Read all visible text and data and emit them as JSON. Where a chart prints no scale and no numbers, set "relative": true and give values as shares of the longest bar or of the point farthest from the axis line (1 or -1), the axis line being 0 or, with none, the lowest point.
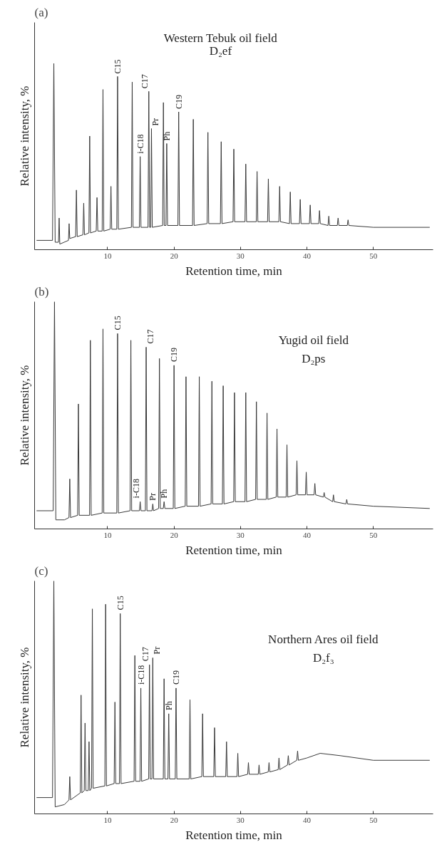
{
  "chart_data": [
    {
      "type": "line",
      "relative": true,
      "title": "Western Tebuk oil field",
      "subtitle": "D₂ef",
      "xlabel": "Retention time, min",
      "ylabel": "Relative intensity, %",
      "xlim": [
        -1,
        59
      ],
      "xticks": [
        10,
        20,
        30,
        40,
        50
      ],
      "grid": false,
      "series": [
        {
          "color": "#3a3a3a",
          "x": [
            -0.7,
            1.7,
            1.9,
            2.1,
            2.6,
            2.7,
            2.8,
            4.1,
            4.2,
            4.3,
            5.18,
            5.3,
            5.42,
            6.28,
            6.4,
            6.52,
            7.18,
            7.3,
            7.42,
            8.28,
            8.4,
            8.52,
            9.18,
            9.3,
            9.42,
            10.38,
            10.5,
            10.62,
            11.38,
            11.5,
            11.62,
            13.58,
            13.7,
            13.82,
            14.78,
            14.9,
            15.02,
            16.08,
            16.2,
            16.32,
            16.48,
            16.6,
            16.72,
            18.28,
            18.4,
            18.52,
            18.78,
            18.9,
            19.02,
            20.58,
            20.7,
            20.82,
            22.78,
            22.9,
            23.02,
            24.98,
            25.1,
            25.22,
            26.98,
            27.1,
            27.22,
            28.88,
            29.0,
            29.12,
            30.68,
            30.8,
            30.92,
            32.38,
            32.5,
            32.62,
            34.08,
            34.2,
            34.32,
            35.78,
            35.9,
            36.02,
            37.38,
            37.5,
            37.62,
            38.88,
            39.0,
            39.12,
            40.38,
            40.5,
            40.62,
            41.78,
            41.9,
            42.02,
            43.18,
            43.3,
            43.42,
            44.58,
            44.7,
            44.82,
            46.08,
            46.2,
            46.32,
            50,
            58.5
          ],
          "values": [
            0.05,
            0.05,
            1.0,
            0.04,
            0.04,
            0.17,
            0.03,
            0.05,
            0.14,
            0.06,
            0.07,
            0.32,
            0.07,
            0.08,
            0.25,
            0.08,
            0.09,
            0.61,
            0.09,
            0.1,
            0.28,
            0.1,
            0.1,
            0.86,
            0.1,
            0.11,
            0.34,
            0.11,
            0.11,
            0.93,
            0.11,
            0.12,
            0.9,
            0.12,
            0.12,
            0.5,
            0.12,
            0.12,
            0.85,
            0.12,
            0.12,
            0.65,
            0.12,
            0.13,
            0.79,
            0.13,
            0.13,
            0.57,
            0.13,
            0.13,
            0.74,
            0.13,
            0.13,
            0.7,
            0.13,
            0.14,
            0.63,
            0.14,
            0.14,
            0.58,
            0.14,
            0.15,
            0.54,
            0.15,
            0.15,
            0.46,
            0.15,
            0.15,
            0.42,
            0.15,
            0.15,
            0.38,
            0.15,
            0.15,
            0.34,
            0.15,
            0.14,
            0.31,
            0.14,
            0.14,
            0.27,
            0.14,
            0.14,
            0.24,
            0.14,
            0.14,
            0.21,
            0.14,
            0.13,
            0.18,
            0.13,
            0.13,
            0.17,
            0.13,
            0.13,
            0.16,
            0.13,
            0.12,
            0.12
          ]
        }
      ],
      "annotations": [
        "(a)",
        {
          "text": "C15",
          "x": 11.5,
          "y": 0.93
        },
        {
          "text": "i-C18",
          "x": 14.9,
          "y": 0.5
        },
        {
          "text": "C17",
          "x": 16.2,
          "y": 0.85
        },
        {
          "text": "Pr",
          "x": 16.6,
          "y": 0.65
        },
        {
          "text": "Ph",
          "x": 18.9,
          "y": 0.57
        },
        {
          "text": "C19",
          "x": 20.7,
          "y": 0.74
        }
      ]
    },
    {
      "type": "line",
      "relative": true,
      "title": "Yugid oil field",
      "subtitle": "D₂ps",
      "xlabel": "Retention time, min",
      "ylabel": "Relative intensity, %",
      "xlim": [
        -1,
        59
      ],
      "xticks": [
        10,
        20,
        30,
        40,
        50
      ],
      "grid": false,
      "series": [
        {
          "color": "#3a3a3a",
          "x": [
            -0.7,
            1.8,
            2.0,
            2.2,
            3.5,
            4.18,
            4.3,
            4.42,
            5.48,
            5.6,
            5.72,
            7.28,
            7.4,
            7.52,
            9.18,
            9.3,
            9.42,
            11.38,
            11.5,
            11.62,
            13.38,
            13.5,
            13.62,
            14.78,
            14.9,
            15.02,
            15.68,
            15.8,
            15.92,
            16.68,
            16.8,
            16.92,
            17.68,
            17.8,
            17.92,
            18.38,
            18.5,
            18.62,
            19.88,
            20.0,
            20.12,
            21.68,
            21.8,
            21.92,
            23.68,
            23.8,
            23.92,
            25.58,
            25.7,
            25.82,
            27.28,
            27.4,
            27.52,
            28.98,
            29.1,
            29.22,
            30.68,
            30.8,
            30.92,
            32.28,
            32.4,
            32.52,
            33.88,
            34.0,
            34.12,
            35.38,
            35.5,
            35.62,
            36.88,
            37.0,
            37.12,
            38.38,
            38.5,
            38.62,
            39.78,
            39.9,
            40.02,
            41.08,
            41.2,
            41.32,
            42.48,
            42.6,
            42.72,
            43.88,
            44.0,
            44.12,
            45.88,
            46.0,
            46.12,
            50,
            58.5
          ],
          "values": [
            0.08,
            0.08,
            1.0,
            0.04,
            0.04,
            0.05,
            0.22,
            0.05,
            0.06,
            0.55,
            0.06,
            0.06,
            0.83,
            0.06,
            0.07,
            0.88,
            0.07,
            0.07,
            0.86,
            0.07,
            0.08,
            0.83,
            0.08,
            0.08,
            0.12,
            0.08,
            0.08,
            0.8,
            0.08,
            0.08,
            0.11,
            0.08,
            0.09,
            0.75,
            0.09,
            0.09,
            0.12,
            0.09,
            0.09,
            0.72,
            0.09,
            0.1,
            0.67,
            0.1,
            0.1,
            0.67,
            0.1,
            0.11,
            0.65,
            0.11,
            0.11,
            0.63,
            0.11,
            0.12,
            0.6,
            0.12,
            0.12,
            0.6,
            0.12,
            0.13,
            0.56,
            0.13,
            0.13,
            0.51,
            0.13,
            0.14,
            0.44,
            0.14,
            0.14,
            0.37,
            0.14,
            0.15,
            0.3,
            0.15,
            0.15,
            0.25,
            0.15,
            0.15,
            0.2,
            0.15,
            0.14,
            0.16,
            0.14,
            0.12,
            0.15,
            0.12,
            0.11,
            0.13,
            0.11,
            0.1,
            0.09
          ]
        }
      ],
      "annotations": [
        "(b)",
        {
          "text": "C15",
          "x": 11.5,
          "y": 0.86
        },
        {
          "text": "i-C18",
          "x": 14.9,
          "y": 0.12
        },
        {
          "text": "C17",
          "x": 15.8,
          "y": 0.8
        },
        {
          "text": "Pr",
          "x": 16.8,
          "y": 0.11
        },
        {
          "text": "Ph",
          "x": 18.5,
          "y": 0.12
        },
        {
          "text": "C19",
          "x": 20.0,
          "y": 0.72
        }
      ]
    },
    {
      "type": "line",
      "relative": true,
      "title": "Northern Ares oil field",
      "subtitle": "D₂f₃",
      "xlabel": "Retention time, min",
      "ylabel": "Relative intensity, %",
      "xlim": [
        -1,
        59
      ],
      "xticks": [
        10,
        20,
        30,
        40,
        50
      ],
      "grid": false,
      "series": [
        {
          "color": "#3a3a3a",
          "x": [
            -0.7,
            1.7,
            1.9,
            2.1,
            3.5,
            4.18,
            4.3,
            4.42,
            5.88,
            6.0,
            6.12,
            6.48,
            6.6,
            6.72,
            7.08,
            7.2,
            7.32,
            7.58,
            7.7,
            7.82,
            9.58,
            9.7,
            9.82,
            10.98,
            11.1,
            11.22,
            11.78,
            11.9,
            12.02,
            13.98,
            14.1,
            14.22,
            14.88,
            15.0,
            15.12,
            16.18,
            16.3,
            16.42,
            16.68,
            16.8,
            16.92,
            18.38,
            18.5,
            18.62,
            19.08,
            19.2,
            19.32,
            20.18,
            20.3,
            20.42,
            22.28,
            22.4,
            22.52,
            24.18,
            24.3,
            24.42,
            25.98,
            26.1,
            26.22,
            27.78,
            27.9,
            28.02,
            29.48,
            29.6,
            29.72,
            31.08,
            31.2,
            31.32,
            32.68,
            32.8,
            32.92,
            34.18,
            34.3,
            34.42,
            35.68,
            35.8,
            35.92,
            37.08,
            37.2,
            37.32,
            38.48,
            38.6,
            38.72,
            40,
            42,
            45,
            50,
            58.5
          ],
          "values": [
            0.07,
            0.07,
            1.0,
            0.03,
            0.04,
            0.06,
            0.16,
            0.06,
            0.09,
            0.51,
            0.09,
            0.1,
            0.39,
            0.1,
            0.1,
            0.31,
            0.1,
            0.11,
            0.88,
            0.11,
            0.12,
            0.9,
            0.12,
            0.13,
            0.48,
            0.13,
            0.13,
            0.86,
            0.13,
            0.14,
            0.68,
            0.14,
            0.14,
            0.54,
            0.14,
            0.15,
            0.64,
            0.15,
            0.15,
            0.67,
            0.15,
            0.15,
            0.58,
            0.15,
            0.15,
            0.43,
            0.15,
            0.15,
            0.54,
            0.15,
            0.15,
            0.49,
            0.15,
            0.16,
            0.43,
            0.16,
            0.16,
            0.37,
            0.16,
            0.16,
            0.31,
            0.16,
            0.16,
            0.26,
            0.16,
            0.17,
            0.22,
            0.17,
            0.17,
            0.21,
            0.17,
            0.18,
            0.22,
            0.18,
            0.19,
            0.24,
            0.19,
            0.21,
            0.25,
            0.21,
            0.23,
            0.27,
            0.23,
            0.24,
            0.26,
            0.25,
            0.23,
            0.23
          ]
        }
      ],
      "annotations": [
        "(c)",
        {
          "text": "C15",
          "x": 11.9,
          "y": 0.86
        },
        {
          "text": "i-C18",
          "x": 15.0,
          "y": 0.54
        },
        {
          "text": "C17",
          "x": 16.3,
          "y": 0.64
        },
        {
          "text": "Pr",
          "x": 16.8,
          "y": 0.67
        },
        {
          "text": "Ph",
          "x": 19.2,
          "y": 0.43
        },
        {
          "text": "C19",
          "x": 20.3,
          "y": 0.54
        }
      ]
    }
  ]
}
